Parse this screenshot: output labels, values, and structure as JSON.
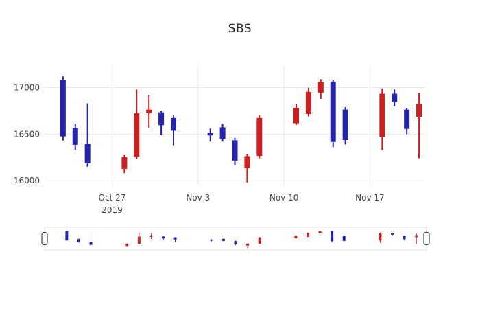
{
  "title": "SBS",
  "colors": {
    "increasing": "#cc1f1f",
    "decreasing": "#2424aa",
    "grid": "#ebebeb",
    "axis_text": "#444444",
    "slider_border": "#e2e2e2",
    "handle_border": "#444444",
    "background": "#ffffff"
  },
  "chart_data": {
    "type": "candlestick",
    "title": "SBS",
    "legend": "none",
    "grid": "on",
    "x_base": "2019-10-22",
    "x_range": [
      -0.5,
      30.5
    ],
    "y_range": [
      15950,
      17240
    ],
    "y_ticks": [
      16000,
      16500,
      17000
    ],
    "x_ticks": [
      {
        "pos": 5,
        "lines": [
          "Oct 27",
          "2019"
        ]
      },
      {
        "pos": 12,
        "lines": [
          "Nov 3"
        ]
      },
      {
        "pos": 19,
        "lines": [
          "Nov 10"
        ]
      },
      {
        "pos": 26,
        "lines": [
          "Nov 17"
        ]
      }
    ],
    "color_rule": "close >= open drawn red (increasing), close < open drawn blue (decreasing)",
    "candles": [
      {
        "date": "2019-10-23",
        "open": 17080,
        "high": 17120,
        "low": 16430,
        "close": 16480
      },
      {
        "date": "2019-10-24",
        "open": 16560,
        "high": 16610,
        "low": 16330,
        "close": 16390
      },
      {
        "date": "2019-10-25",
        "open": 16390,
        "high": 16830,
        "low": 16150,
        "close": 16190
      },
      {
        "date": "2019-10-28",
        "open": 16130,
        "high": 16280,
        "low": 16080,
        "close": 16250
      },
      {
        "date": "2019-10-29",
        "open": 16260,
        "high": 16980,
        "low": 16230,
        "close": 16720
      },
      {
        "date": "2019-10-30",
        "open": 16730,
        "high": 16920,
        "low": 16570,
        "close": 16760
      },
      {
        "date": "2019-10-31",
        "open": 16730,
        "high": 16750,
        "low": 16490,
        "close": 16600
      },
      {
        "date": "2019-11-01",
        "open": 16670,
        "high": 16700,
        "low": 16380,
        "close": 16540
      },
      {
        "date": "2019-11-04",
        "open": 16510,
        "high": 16560,
        "low": 16420,
        "close": 16490
      },
      {
        "date": "2019-11-05",
        "open": 16570,
        "high": 16610,
        "low": 16420,
        "close": 16450
      },
      {
        "date": "2019-11-06",
        "open": 16430,
        "high": 16460,
        "low": 16170,
        "close": 16220
      },
      {
        "date": "2019-11-07",
        "open": 16140,
        "high": 16290,
        "low": 15980,
        "close": 16260
      },
      {
        "date": "2019-11-08",
        "open": 16270,
        "high": 16700,
        "low": 16240,
        "close": 16670
      },
      {
        "date": "2019-11-11",
        "open": 16620,
        "high": 16820,
        "low": 16600,
        "close": 16780
      },
      {
        "date": "2019-11-12",
        "open": 16720,
        "high": 17000,
        "low": 16690,
        "close": 16950
      },
      {
        "date": "2019-11-13",
        "open": 16950,
        "high": 17090,
        "low": 16880,
        "close": 17060
      },
      {
        "date": "2019-11-14",
        "open": 17060,
        "high": 17080,
        "low": 16360,
        "close": 16420
      },
      {
        "date": "2019-11-15",
        "open": 16760,
        "high": 16790,
        "low": 16390,
        "close": 16440
      },
      {
        "date": "2019-11-18",
        "open": 16470,
        "high": 16990,
        "low": 16330,
        "close": 16930
      },
      {
        "date": "2019-11-19",
        "open": 16930,
        "high": 16980,
        "low": 16800,
        "close": 16850
      },
      {
        "date": "2019-11-20",
        "open": 16760,
        "high": 16780,
        "low": 16500,
        "close": 16560
      },
      {
        "date": "2019-11-21",
        "open": 16690,
        "high": 16940,
        "low": 16240,
        "close": 16820
      }
    ],
    "rangeslider": {
      "visible": true,
      "selected_range": "full"
    }
  }
}
